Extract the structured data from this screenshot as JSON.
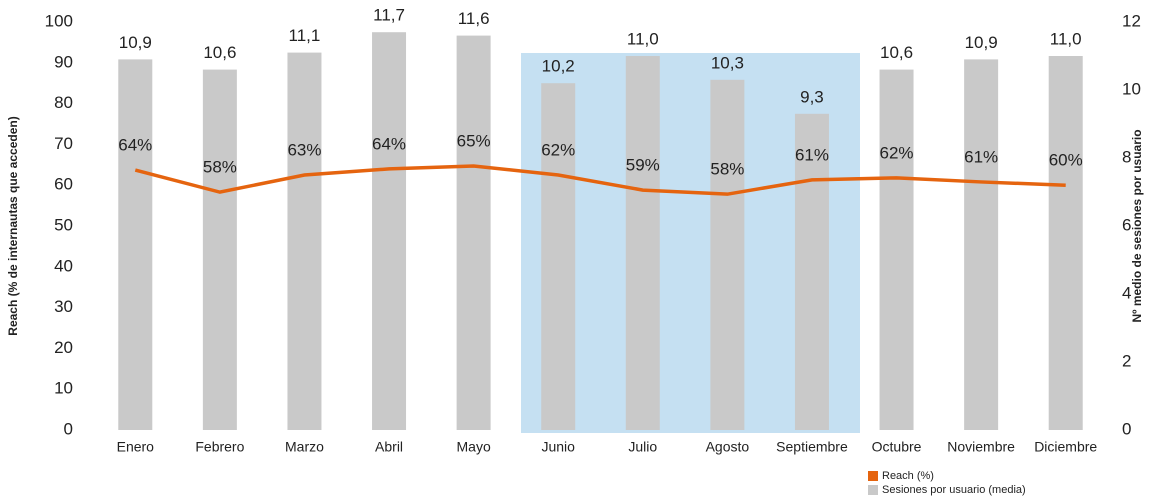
{
  "chart_data": {
    "type": "bar-line",
    "categories": [
      "Enero",
      "Febrero",
      "Marzo",
      "Abril",
      "Mayo",
      "Junio",
      "Julio",
      "Agosto",
      "Septiembre",
      "Octubre",
      "Noviembre",
      "Diciembre"
    ],
    "series": [
      {
        "name": "Reach (%)",
        "type": "line",
        "axis": "y",
        "color": "#e5640f",
        "values": [
          63.7,
          58.3,
          62.5,
          64,
          64.7,
          62.5,
          58.8,
          57.8,
          61.3,
          61.8,
          60.8,
          60
        ],
        "value_labels": [
          "64%",
          "58%",
          "63%",
          "64%",
          "65%",
          "62%",
          "59%",
          "58%",
          "61%",
          "62%",
          "61%",
          "60%"
        ]
      },
      {
        "name": "Sesiones por usuario (media)",
        "type": "bar",
        "axis": "y2",
        "color": "#c9c9c9",
        "values": [
          10.9,
          10.6,
          11.1,
          11.7,
          11.6,
          10.2,
          11.0,
          10.3,
          9.3,
          10.6,
          10.9,
          11.0
        ],
        "value_labels": [
          "10,9",
          "10,6",
          "11,1",
          "11,7",
          "11,6",
          "10,2",
          "11,0",
          "10,3",
          "9,3",
          "10,6",
          "10,9",
          "11,0"
        ]
      }
    ],
    "ylabel": "Reach (% de internautas que acceden)",
    "y2label": "Nº medio de sesiones por usuario",
    "ylim": [
      0,
      100
    ],
    "yticks": [
      0,
      10,
      20,
      30,
      40,
      50,
      60,
      70,
      80,
      90,
      100
    ],
    "y2lim": [
      0,
      12
    ],
    "y2ticks": [
      0,
      2,
      4,
      6,
      8,
      10,
      12
    ],
    "grid": false,
    "legend": "bottom-right"
  }
}
